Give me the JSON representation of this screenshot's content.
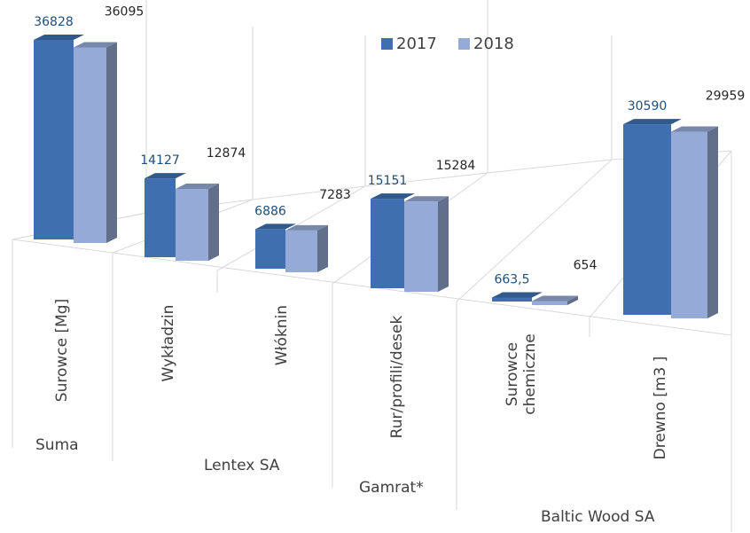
{
  "chart_data": {
    "type": "bar3d",
    "categories": [
      "Surowce [Mg]",
      "Wykładzin",
      "Włóknin",
      "Rur/profili/desek",
      "Surowce chemiczne",
      "Drewno [m3 ]"
    ],
    "groups": [
      "Suma",
      "Lentex SA",
      "Gamrat*",
      "Baltic Wood SA"
    ],
    "series": [
      {
        "name": "2017",
        "color": "#3f6fae",
        "values": [
          36828,
          14127,
          6886,
          15151,
          663.5,
          30590
        ],
        "value_labels": [
          "36828",
          "14127",
          "6886",
          "15151",
          "663,5",
          "30590"
        ]
      },
      {
        "name": "2018",
        "color": "#95aad6",
        "values": [
          36095,
          12874,
          7283,
          15284,
          654,
          29959
        ]
      }
    ],
    "legend": "top-right"
  }
}
